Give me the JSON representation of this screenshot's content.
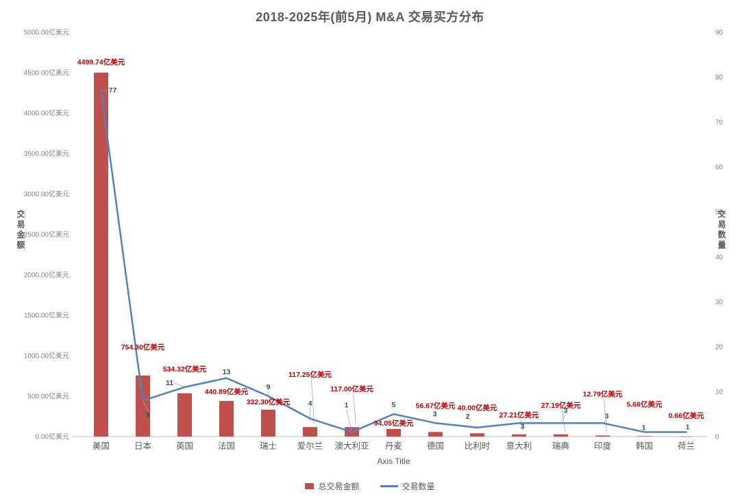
{
  "chart_data": {
    "type": "bar",
    "combo": "bar+line",
    "title": "2018-2025年(前5月) M&A 交易买方分布",
    "categories": [
      "美国",
      "日本",
      "英国",
      "法国",
      "瑞士",
      "爱尔兰",
      "澳大利亚",
      "丹麦",
      "德国",
      "比利时",
      "意大利",
      "瑞典",
      "印度",
      "韩国",
      "荷兰"
    ],
    "series": [
      {
        "name": "总交易金额",
        "type": "bar",
        "axis": "left",
        "unit": "亿美元",
        "color": "#C0504D",
        "label_color": "#C00000",
        "values": [
          4499.74,
          754.3,
          534.32,
          440.89,
          332.3,
          117.25,
          117.0,
          94.05,
          56.67,
          40.0,
          27.21,
          27.19,
          12.79,
          5.66,
          0.66
        ]
      },
      {
        "name": "交易数量",
        "type": "line",
        "axis": "right",
        "color": "#4F81BD",
        "label_color": "#205867",
        "values": [
          77,
          8,
          11,
          13,
          9,
          4,
          1,
          5,
          3,
          2,
          3,
          3,
          3,
          1,
          1
        ]
      }
    ],
    "left_axis": {
      "title": "交易金额",
      "min": 0,
      "max": 5000,
      "step": 500,
      "suffix": "亿美元",
      "tick_color": "#808080"
    },
    "right_axis": {
      "title": "交易数量",
      "min": 0,
      "max": 90,
      "step": 10,
      "tick_color": "#808080"
    },
    "x_axis": {
      "title": "Axis Title",
      "category_color": "#595959"
    },
    "legend": [
      {
        "label": "总交易金额",
        "marker": "bar"
      },
      {
        "label": "交易数量",
        "marker": "line"
      }
    ],
    "grid": "off",
    "legend_position": "bottom"
  }
}
